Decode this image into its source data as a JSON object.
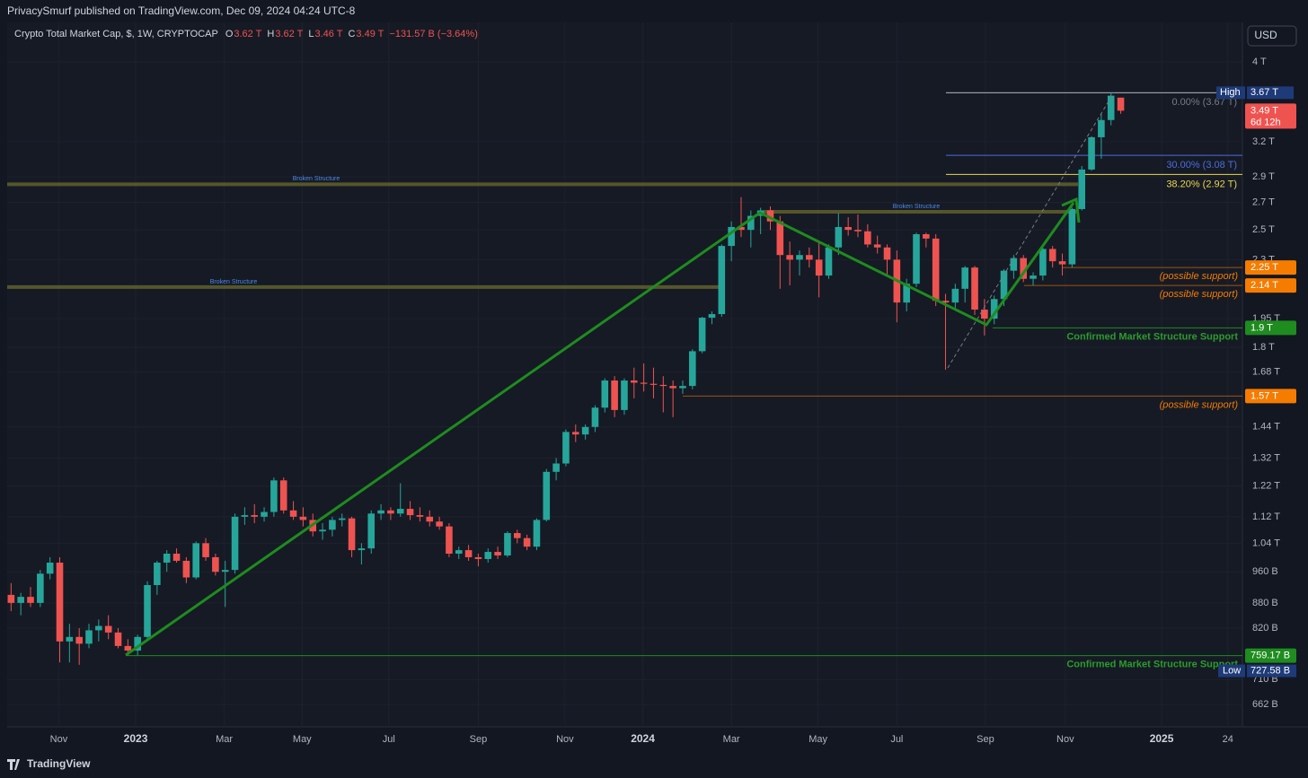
{
  "header": {
    "publisher": "PrivacySmurf published on TradingView.com, Dec 09, 2024 04:24 UTC-8",
    "brand": "TradingView"
  },
  "chart_data": {
    "type": "candlestick",
    "log_scale": true,
    "grid": true,
    "legend": {
      "name": "Crypto Total Market Cap, $, 1W, CRYPTOCAP",
      "ohlc": [
        {
          "key": "O",
          "value": "3.62 T"
        },
        {
          "key": "H",
          "value": "3.62 T"
        },
        {
          "key": "L",
          "value": "3.46 T"
        },
        {
          "key": "C",
          "value": "3.49 T"
        }
      ],
      "change": "−131.57 B (−3.64%)"
    },
    "currency": "USD",
    "up_color": "#26a69a",
    "down_color": "#ef5350",
    "open": [
      900,
      880,
      895,
      880,
      955,
      985,
      790,
      800,
      785,
      815,
      825,
      810,
      780,
      770,
      800,
      925,
      985,
      1010,
      990,
      945,
      1040,
      1000,
      960,
      965,
      1120,
      1125,
      1120,
      1135,
      1240,
      1140,
      1120,
      1110,
      1075,
      1080,
      1110,
      1115,
      1020,
      1025,
      1130,
      1140,
      1130,
      1145,
      1125,
      1120,
      1105,
      1090,
      1010,
      1020,
      1000,
      995,
      1015,
      1005,
      1070,
      1055,
      1030,
      1110,
      1270,
      1300,
      1420,
      1410,
      1440,
      1520,
      1640,
      1510,
      1640,
      1630,
      1625,
      1620,
      1615,
      1605,
      1615,
      1780,
      1955,
      1975,
      2390,
      2520,
      2500,
      2600,
      2640,
      2560,
      2330,
      2300,
      2330,
      2300,
      2200,
      2380,
      2520,
      2500,
      2490,
      2400,
      2380,
      2300,
      2040,
      2150,
      2470,
      2440,
      2050,
      2040,
      2120,
      2250,
      2000,
      1950,
      2060,
      2230,
      2310,
      2180,
      2200,
      2370,
      2290,
      2270,
      2650,
      2960,
      3240,
      3400,
      3620
    ],
    "high": [
      930,
      905,
      920,
      965,
      1000,
      1000,
      830,
      820,
      830,
      840,
      850,
      820,
      795,
      805,
      935,
      990,
      1020,
      1025,
      1000,
      1045,
      1055,
      1010,
      990,
      1130,
      1150,
      1160,
      1150,
      1250,
      1250,
      1170,
      1150,
      1130,
      1100,
      1120,
      1130,
      1120,
      1040,
      1140,
      1160,
      1150,
      1230,
      1170,
      1150,
      1140,
      1120,
      1100,
      1030,
      1035,
      1010,
      1025,
      1030,
      1075,
      1080,
      1065,
      1115,
      1280,
      1320,
      1430,
      1450,
      1450,
      1530,
      1650,
      1660,
      1650,
      1700,
      1720,
      1700,
      1660,
      1640,
      1640,
      1790,
      1960,
      1990,
      2400,
      2560,
      2740,
      2640,
      2660,
      2670,
      2600,
      2420,
      2360,
      2380,
      2420,
      2400,
      2620,
      2590,
      2610,
      2540,
      2460,
      2400,
      2360,
      2180,
      2480,
      2480,
      2470,
      2090,
      2150,
      2260,
      2260,
      2060,
      2080,
      2240,
      2330,
      2330,
      2220,
      2380,
      2390,
      2340,
      2660,
      2990,
      3250,
      3460,
      3670,
      3620
    ],
    "low": [
      860,
      850,
      870,
      870,
      940,
      745,
      745,
      740,
      775,
      790,
      795,
      775,
      760,
      760,
      795,
      900,
      960,
      985,
      930,
      940,
      990,
      950,
      870,
      955,
      1095,
      1100,
      1105,
      1120,
      1130,
      1110,
      1090,
      1060,
      1050,
      1060,
      1090,
      1000,
      980,
      1010,
      1110,
      1110,
      1120,
      1110,
      1105,
      1090,
      1080,
      1000,
      995,
      990,
      975,
      985,
      995,
      1000,
      1040,
      1020,
      1020,
      1105,
      1240,
      1290,
      1380,
      1390,
      1420,
      1500,
      1480,
      1490,
      1560,
      1590,
      1560,
      1500,
      1480,
      1580,
      1600,
      1770,
      1920,
      1960,
      2290,
      2450,
      2380,
      2470,
      2500,
      2120,
      2140,
      2200,
      2250,
      2070,
      2180,
      2330,
      2460,
      2450,
      2380,
      2340,
      2200,
      1930,
      1990,
      2130,
      2380,
      2020,
      1690,
      2000,
      2040,
      1970,
      1860,
      1920,
      2020,
      2180,
      2160,
      2140,
      2170,
      2250,
      2200,
      2250,
      2640,
      2950,
      3050,
      3350,
      3460
    ],
    "close": [
      880,
      895,
      880,
      955,
      985,
      790,
      800,
      785,
      815,
      825,
      810,
      780,
      770,
      800,
      925,
      985,
      1010,
      990,
      945,
      1040,
      1000,
      960,
      965,
      1120,
      1125,
      1120,
      1135,
      1240,
      1140,
      1120,
      1110,
      1075,
      1080,
      1110,
      1115,
      1020,
      1025,
      1130,
      1140,
      1130,
      1145,
      1125,
      1120,
      1105,
      1090,
      1010,
      1020,
      1000,
      995,
      1015,
      1005,
      1070,
      1055,
      1030,
      1110,
      1270,
      1300,
      1420,
      1410,
      1440,
      1520,
      1640,
      1510,
      1640,
      1630,
      1625,
      1620,
      1615,
      1605,
      1615,
      1780,
      1955,
      1975,
      2390,
      2520,
      2500,
      2600,
      2640,
      2560,
      2330,
      2300,
      2330,
      2300,
      2200,
      2380,
      2520,
      2500,
      2490,
      2400,
      2380,
      2300,
      2040,
      2150,
      2470,
      2440,
      2050,
      2040,
      2120,
      2250,
      2000,
      1950,
      2060,
      2230,
      2310,
      2180,
      2200,
      2370,
      2290,
      2270,
      2650,
      2960,
      3240,
      3400,
      3640,
      3490
    ],
    "xlim": [
      -0.4,
      126.5
    ],
    "xticks": [
      {
        "value": 4.9,
        "label": "Nov"
      },
      {
        "value": 12.8,
        "label": "2023"
      },
      {
        "value": 21.9,
        "label": "Mar"
      },
      {
        "value": 29.9,
        "label": "May"
      },
      {
        "value": 38.8,
        "label": "Jul"
      },
      {
        "value": 48.0,
        "label": "Sep"
      },
      {
        "value": 56.9,
        "label": "Nov"
      },
      {
        "value": 64.9,
        "label": "2024"
      },
      {
        "value": 74.0,
        "label": "Mar"
      },
      {
        "value": 82.9,
        "label": "May"
      },
      {
        "value": 91.0,
        "label": "Jul"
      },
      {
        "value": 100.1,
        "label": "Sep"
      },
      {
        "value": 108.3,
        "label": "Nov"
      },
      {
        "value": 118.2,
        "label": "2025"
      },
      {
        "value": 125.0,
        "label": "24"
      }
    ],
    "ylim": [
      622,
      4468
    ],
    "yticks": [
      {
        "value": 4000,
        "label": "4 T"
      },
      {
        "value": 3200,
        "label": "3.2 T"
      },
      {
        "value": 2900,
        "label": "2.9 T"
      },
      {
        "value": 2700,
        "label": "2.7 T"
      },
      {
        "value": 2500,
        "label": "2.5 T"
      },
      {
        "value": 2300,
        "label": "2.3 T"
      },
      {
        "value": 1950,
        "label": "1.95 T"
      },
      {
        "value": 1800,
        "label": "1.8 T"
      },
      {
        "value": 1680,
        "label": "1.68 T"
      },
      {
        "value": 1440,
        "label": "1.44 T"
      },
      {
        "value": 1320,
        "label": "1.32 T"
      },
      {
        "value": 1220,
        "label": "1.22 T"
      },
      {
        "value": 1120,
        "label": "1.12 T"
      },
      {
        "value": 1040,
        "label": "1.04 T"
      },
      {
        "value": 960,
        "label": "960 B"
      },
      {
        "value": 880,
        "label": "880 B"
      },
      {
        "value": 820,
        "label": "820 B"
      },
      {
        "value": 710,
        "label": "710 B"
      },
      {
        "value": 662,
        "label": "662 B"
      }
    ],
    "fib": [
      {
        "value": 3670,
        "label": "0.00% (3.67 T)",
        "color": "#787b86"
      },
      {
        "value": 3080,
        "label": "30.00% (3.08 T)",
        "color": "#4a6ee0"
      },
      {
        "value": 2920,
        "label": "38.20% (2.92 T)",
        "color": "#e8d84e"
      }
    ],
    "structures": [
      {
        "value": 2840,
        "label": "Broken Structure"
      },
      {
        "value": 2130,
        "label": "Broken Structure"
      },
      {
        "value": 2630,
        "label": "Broken Structure"
      }
    ],
    "levels": [
      {
        "value": 2250,
        "label": "2.25 T",
        "note": "(possible support)",
        "color": "#f57c00"
      },
      {
        "value": 2140,
        "label": "2.14 T",
        "note": "(possible support)",
        "color": "#f57c00"
      },
      {
        "value": 1900,
        "label": "1.9 T",
        "note": "Confirmed Market Structure Support",
        "color": "#1e8c1e"
      },
      {
        "value": 1570,
        "label": "1.57 T",
        "note": "(possible support)",
        "color": "#f57c00"
      },
      {
        "value": 759.17,
        "label": "759.17 B",
        "note": "Confirmed Market Structure Support",
        "color": "#1e8c1e"
      }
    ],
    "high_mark": {
      "name": "High",
      "value": 3670,
      "label": "3.67 T"
    },
    "low_mark": {
      "name": "Low",
      "value": 727.58,
      "label": "727.58 B"
    },
    "last": {
      "value": 3490,
      "label": "3.49 T",
      "countdown": "6d 12h"
    }
  }
}
